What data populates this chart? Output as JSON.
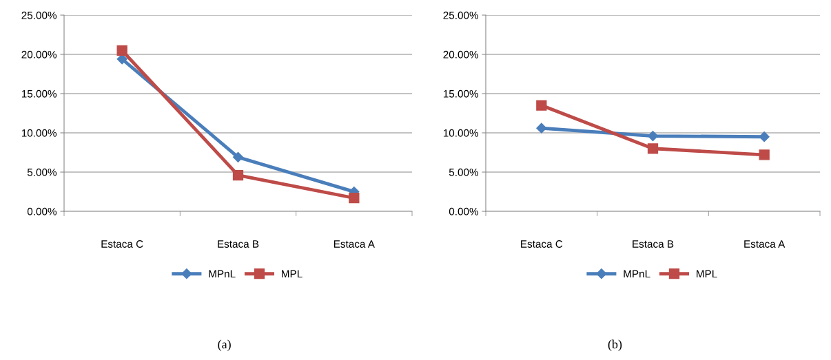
{
  "chart_data": [
    {
      "type": "line",
      "categories": [
        "Estaca C",
        "Estaca B",
        "Estaca A"
      ],
      "series": [
        {
          "name": "MPnL",
          "color": "#4a7ebb",
          "marker": "diamond",
          "values": [
            19.4,
            6.9,
            2.5
          ]
        },
        {
          "name": "MPL",
          "color": "#be4b48",
          "marker": "square",
          "values": [
            20.5,
            4.6,
            1.7
          ]
        }
      ],
      "ylim": [
        0,
        25
      ],
      "yticks": [
        {
          "value": 0,
          "label": "0.00%"
        },
        {
          "value": 5,
          "label": "5.00%"
        },
        {
          "value": 10,
          "label": "10.00%"
        },
        {
          "value": 15,
          "label": "15.00%"
        },
        {
          "value": 20,
          "label": "20.00%"
        },
        {
          "value": 25,
          "label": "25.00%"
        }
      ],
      "grid": "y",
      "legend": "bottom",
      "annotations": [
        "(a)"
      ]
    },
    {
      "type": "line",
      "categories": [
        "Estaca C",
        "Estaca B",
        "Estaca A"
      ],
      "series": [
        {
          "name": "MPnL",
          "color": "#4a7ebb",
          "marker": "diamond",
          "values": [
            10.6,
            9.6,
            9.5
          ]
        },
        {
          "name": "MPL",
          "color": "#be4b48",
          "marker": "square",
          "values": [
            13.5,
            8.0,
            7.2
          ]
        }
      ],
      "ylim": [
        0,
        25
      ],
      "yticks": [
        {
          "value": 0,
          "label": "0.00%"
        },
        {
          "value": 5,
          "label": "5.00%"
        },
        {
          "value": 10,
          "label": "10.00%"
        },
        {
          "value": 15,
          "label": "15.00%"
        },
        {
          "value": 20,
          "label": "20.00%"
        },
        {
          "value": 25,
          "label": "25.00%"
        }
      ],
      "grid": "y",
      "legend": "bottom",
      "annotations": [
        "(b)"
      ]
    }
  ]
}
